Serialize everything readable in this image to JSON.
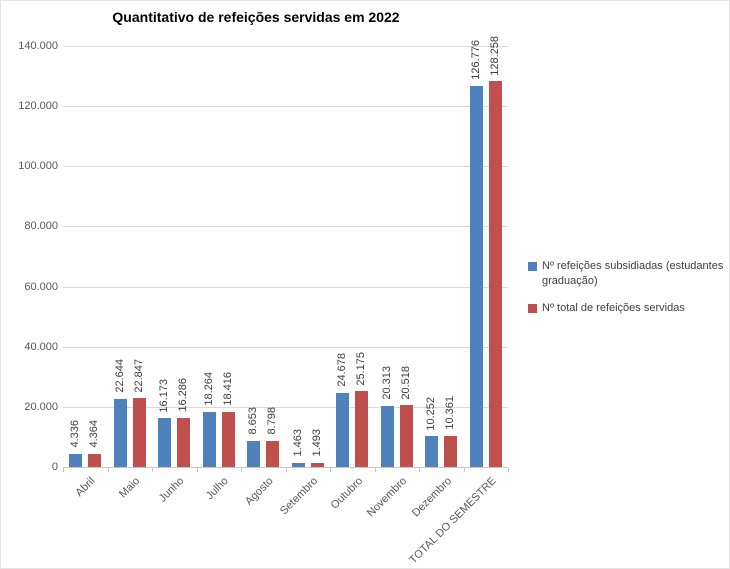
{
  "chart": {
    "title": "Quantitativo de refeições servidas em 2022"
  },
  "chart_data": {
    "type": "bar",
    "title": "Quantitativo de refeições servidas em 2022",
    "categories": [
      "Abril",
      "Maio",
      "Junho",
      "Julho",
      "Agosto",
      "Setembro",
      "Outubro",
      "Novembro",
      "Dezembro",
      "TOTAL DO SEMESTRE"
    ],
    "series": [
      {
        "name": "Nº refeições subsidiadas (estudantes graduação)",
        "color": "#4F81BD",
        "values": [
          4336,
          22644,
          16173,
          18264,
          8653,
          1463,
          24678,
          20313,
          10252,
          126776
        ],
        "labels": [
          "4.336",
          "22.644",
          "16.173",
          "18.264",
          "8.653",
          "1.463",
          "24.678",
          "20.313",
          "10.252",
          "126.776"
        ]
      },
      {
        "name": "Nº total de refeições servidas",
        "color": "#C0504D",
        "values": [
          4364,
          22847,
          16286,
          18416,
          8798,
          1493,
          25175,
          20518,
          10361,
          128258
        ],
        "labels": [
          "4.364",
          "22.847",
          "16.286",
          "18.416",
          "8.798",
          "1.493",
          "25.175",
          "20.518",
          "10.361",
          "128.258"
        ]
      }
    ],
    "ylim": [
      0,
      140000
    ],
    "ytick_step": 20000,
    "ytick_labels": [
      "0",
      "20.000",
      "40.000",
      "60.000",
      "80.000",
      "100.000",
      "120.000",
      "140.000"
    ],
    "grid": true,
    "data_labels": true,
    "legend_position": "right"
  }
}
